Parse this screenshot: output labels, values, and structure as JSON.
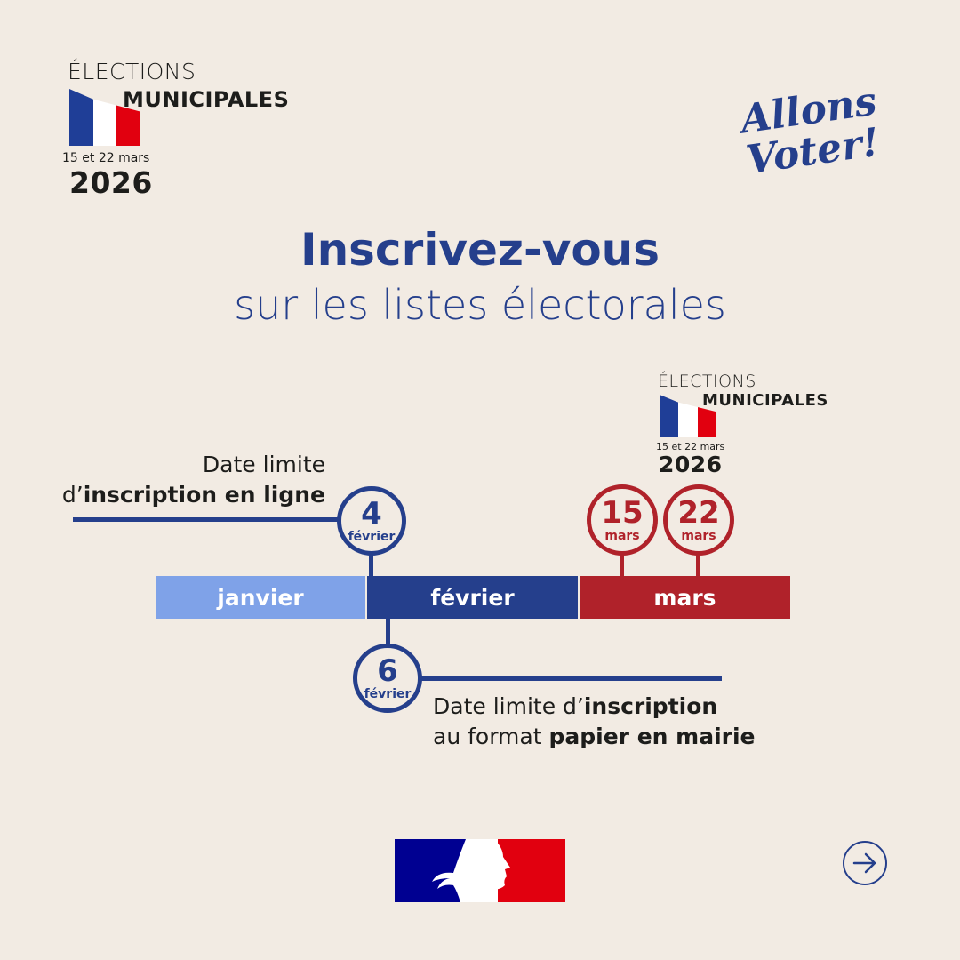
{
  "logo": {
    "line1": "ÉLECTIONS",
    "line2": "MUNICIPALES",
    "dates": "15 et 22 mars",
    "year": "2026"
  },
  "slogan": "Allons Voter!",
  "heading": {
    "title": "Inscrivez-vous",
    "subtitle": "sur les listes électorales"
  },
  "timeline": {
    "months": [
      {
        "label": "janvier",
        "color": "#7fa2e8"
      },
      {
        "label": "février",
        "color": "#253f8c"
      },
      {
        "label": "mars",
        "color": "#b0222a"
      }
    ],
    "markers": [
      {
        "day": "4",
        "month": "février"
      },
      {
        "day": "6",
        "month": "février"
      },
      {
        "day": "15",
        "month": "mars"
      },
      {
        "day": "22",
        "month": "mars"
      }
    ],
    "online_deadline": {
      "line1": "Date limite",
      "prefix": "d’",
      "bold": "inscription en ligne"
    },
    "paper_deadline": {
      "l1_normal": "Date limite d’",
      "l1_bold": "inscription",
      "l2_normal": "au format ",
      "l2_bold": "papier en mairie"
    }
  },
  "colors": {
    "blue": "#253f8c",
    "light_blue": "#7fa2e8",
    "red": "#b0222a",
    "background": "#f2ebe3"
  },
  "footer": {
    "brand_logo": "marianne-logo",
    "next_icon": "arrow-right-icon"
  }
}
